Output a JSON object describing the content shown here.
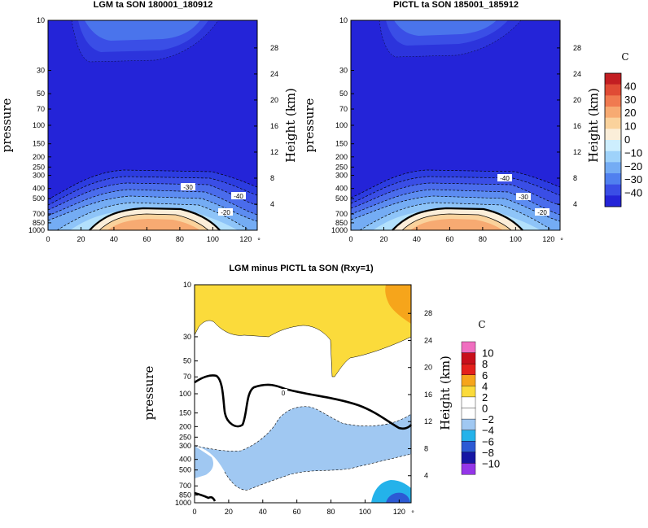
{
  "chart_data": [
    {
      "type": "contour",
      "title": "LGM ta SON 180001_180912",
      "ylabel": "pressure",
      "y2label": "Height (km)",
      "x_ticks": [
        0,
        20,
        40,
        60,
        80,
        100,
        120
      ],
      "x_marker": "°",
      "p_ticks": [
        10,
        30,
        50,
        70,
        100,
        150,
        200,
        250,
        300,
        400,
        500,
        700,
        850,
        1000
      ],
      "km_ticks": [
        28,
        24,
        20,
        16,
        12,
        8,
        4
      ],
      "xlim": [
        0,
        127
      ],
      "plim": [
        10,
        1000
      ],
      "levels": [
        -40,
        -30,
        -20,
        -10,
        0,
        10
      ],
      "contour_labels": [
        "-30",
        "-40",
        "-20"
      ],
      "units": "C",
      "colorbar": [
        "40",
        "30",
        "20",
        "10",
        "0",
        "−10",
        "−20",
        "−30",
        "−40"
      ]
    },
    {
      "type": "contour",
      "title": "PICTL ta SON 185001_185912",
      "ylabel": "pressure",
      "y2label": "Height (km)",
      "x_ticks": [
        0,
        20,
        40,
        60,
        80,
        100,
        120
      ],
      "x_marker": "°",
      "p_ticks": [
        10,
        30,
        50,
        70,
        100,
        150,
        200,
        250,
        300,
        400,
        500,
        700,
        850,
        1000
      ],
      "km_ticks": [
        28,
        24,
        20,
        16,
        12,
        8,
        4
      ],
      "xlim": [
        0,
        127
      ],
      "plim": [
        10,
        1000
      ],
      "levels": [
        -40,
        -30,
        -20,
        -10,
        0,
        10
      ],
      "contour_labels": [
        "-40",
        "-30",
        "-20"
      ]
    },
    {
      "type": "contour",
      "title": "LGM minus PICTL ta SON (Rxy=1)",
      "ylabel": "pressure",
      "y2label": "Height (km)",
      "x_ticks": [
        0,
        20,
        40,
        60,
        80,
        100,
        120
      ],
      "x_marker": "°",
      "p_ticks": [
        10,
        30,
        50,
        70,
        100,
        150,
        200,
        250,
        300,
        400,
        500,
        700,
        850,
        1000
      ],
      "km_ticks": [
        28,
        24,
        20,
        16,
        12,
        8,
        4
      ],
      "xlim": [
        0,
        127
      ],
      "plim": [
        10,
        1000
      ],
      "contour_labels": [
        "0"
      ],
      "units": "C",
      "colorbar": [
        "10",
        "8",
        "6",
        "4",
        "2",
        "0",
        "−2",
        "−4",
        "−6",
        "−8",
        "−10"
      ]
    }
  ],
  "colors": {
    "temp_scale": [
      "#2424d8",
      "#3a4ee6",
      "#5080ef",
      "#74acf4",
      "#9ed2fa",
      "#cdeefe",
      "#fbeed9",
      "#fad29c",
      "#f7aa72",
      "#f07a50",
      "#e04b35",
      "#c31e22"
    ],
    "diff_scale": [
      "#9436e8",
      "#1616a4",
      "#2c5ad4",
      "#24b2ea",
      "#a0c8f2",
      "#ffffff",
      "#ffffff",
      "#fbdb3b",
      "#f6a51b",
      "#e4201b",
      "#c80f1b",
      "#f06ec0"
    ]
  }
}
